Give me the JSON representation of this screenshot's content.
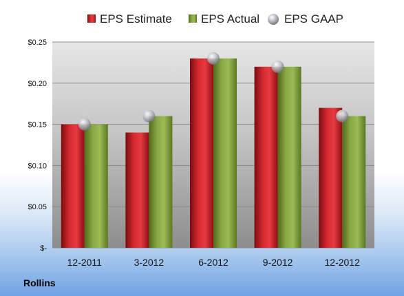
{
  "company": "Rollins",
  "colors": {
    "estimate": "#cc1f27",
    "actual": "#7f9e3a",
    "gaap": "#b0b4bc"
  },
  "chart_data": {
    "type": "bar",
    "categories": [
      "12-2011",
      "3-2012",
      "6-2012",
      "9-2012",
      "12-2012"
    ],
    "series": [
      {
        "name": "EPS Estimate",
        "values": [
          0.15,
          0.14,
          0.23,
          0.22,
          0.17
        ]
      },
      {
        "name": "EPS Actual",
        "values": [
          0.15,
          0.16,
          0.23,
          0.22,
          0.16
        ]
      },
      {
        "name": "EPS GAAP",
        "values": [
          0.15,
          0.16,
          0.23,
          0.22,
          0.16
        ],
        "marker": "sphere"
      }
    ],
    "yticks": [
      "$-",
      "$0.05",
      "$0.10",
      "$0.15",
      "$0.20",
      "$0.25"
    ],
    "ylim": [
      0,
      0.25
    ],
    "grid": true,
    "legend": "top"
  }
}
